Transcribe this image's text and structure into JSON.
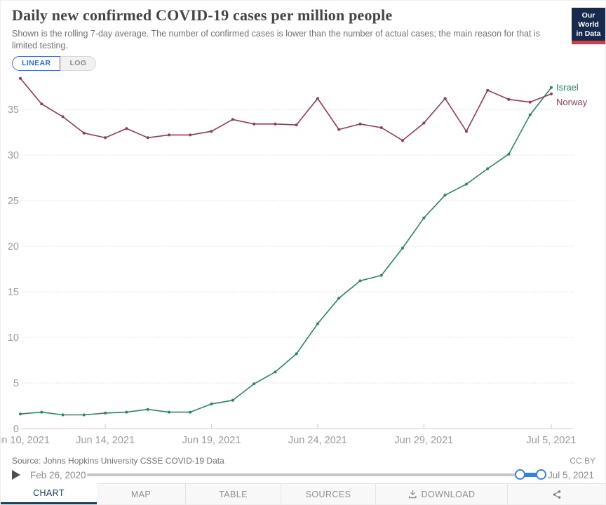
{
  "header": {
    "title": "Daily new confirmed COVID-19 cases per million people",
    "subtitle": "Shown is the rolling 7-day average. The number of confirmed cases is lower than the number of actual cases; the main reason for that is limited testing.",
    "logo_line1": "Our World",
    "logo_line2": "in Data"
  },
  "toolbar": {
    "linear_label": "LINEAR",
    "log_label": "LOG"
  },
  "chart_data": {
    "type": "line",
    "title": "Daily new confirmed COVID-19 cases per million people",
    "xlabel": "",
    "ylabel": "",
    "ylim": [
      0,
      38.5
    ],
    "yticks": [
      0,
      5,
      10,
      15,
      20,
      25,
      30,
      35
    ],
    "grid": true,
    "legend_position": "end-of-line",
    "x_dates": [
      "Jun 10, 2021",
      "Jun 11, 2021",
      "Jun 12, 2021",
      "Jun 13, 2021",
      "Jun 14, 2021",
      "Jun 15, 2021",
      "Jun 16, 2021",
      "Jun 17, 2021",
      "Jun 18, 2021",
      "Jun 19, 2021",
      "Jun 20, 2021",
      "Jun 21, 2021",
      "Jun 22, 2021",
      "Jun 23, 2021",
      "Jun 24, 2021",
      "Jun 25, 2021",
      "Jun 26, 2021",
      "Jun 27, 2021",
      "Jun 28, 2021",
      "Jun 29, 2021",
      "Jun 30, 2021",
      "Jul 1, 2021",
      "Jul 2, 2021",
      "Jul 3, 2021",
      "Jul 4, 2021",
      "Jul 5, 2021"
    ],
    "xticks": [
      {
        "index": 0,
        "label": "Jun 10, 2021"
      },
      {
        "index": 4,
        "label": "Jun 14, 2021"
      },
      {
        "index": 9,
        "label": "Jun 19, 2021"
      },
      {
        "index": 14,
        "label": "Jun 24, 2021"
      },
      {
        "index": 19,
        "label": "Jun 29, 2021"
      },
      {
        "index": 25,
        "label": "Jul 5, 2021"
      }
    ],
    "series": [
      {
        "name": "Israel",
        "color": "#2c8465",
        "values": [
          1.6,
          1.8,
          1.5,
          1.5,
          1.7,
          1.8,
          2.1,
          1.8,
          1.8,
          2.7,
          3.1,
          4.9,
          6.2,
          8.2,
          11.5,
          14.3,
          16.2,
          16.8,
          19.8,
          23.1,
          25.6,
          26.8,
          28.5,
          30.1,
          34.4,
          37.4
        ]
      },
      {
        "name": "Norway",
        "color": "#94385f",
        "values": [
          38.4,
          35.6,
          34.2,
          32.4,
          31.9,
          32.9,
          31.9,
          32.2,
          32.2,
          32.6,
          33.9,
          33.4,
          33.4,
          33.3,
          36.2,
          32.8,
          33.4,
          33.0,
          31.6,
          33.5,
          36.2,
          32.6,
          37.1,
          36.1,
          35.8,
          36.7
        ]
      }
    ]
  },
  "footer": {
    "source": "Source: Johns Hopkins University CSSE COVID-19 Data",
    "license": "CC BY",
    "timeline": {
      "start_label": "Feb 26, 2020",
      "end_label": "Jul 5, 2021"
    },
    "tabs": [
      {
        "label": "CHART",
        "active": true
      },
      {
        "label": "MAP"
      },
      {
        "label": "TABLE"
      },
      {
        "label": "SOURCES"
      },
      {
        "label": "DOWNLOAD",
        "icon": "download-icon"
      },
      {
        "label": "",
        "icon": "share-icon"
      }
    ]
  }
}
